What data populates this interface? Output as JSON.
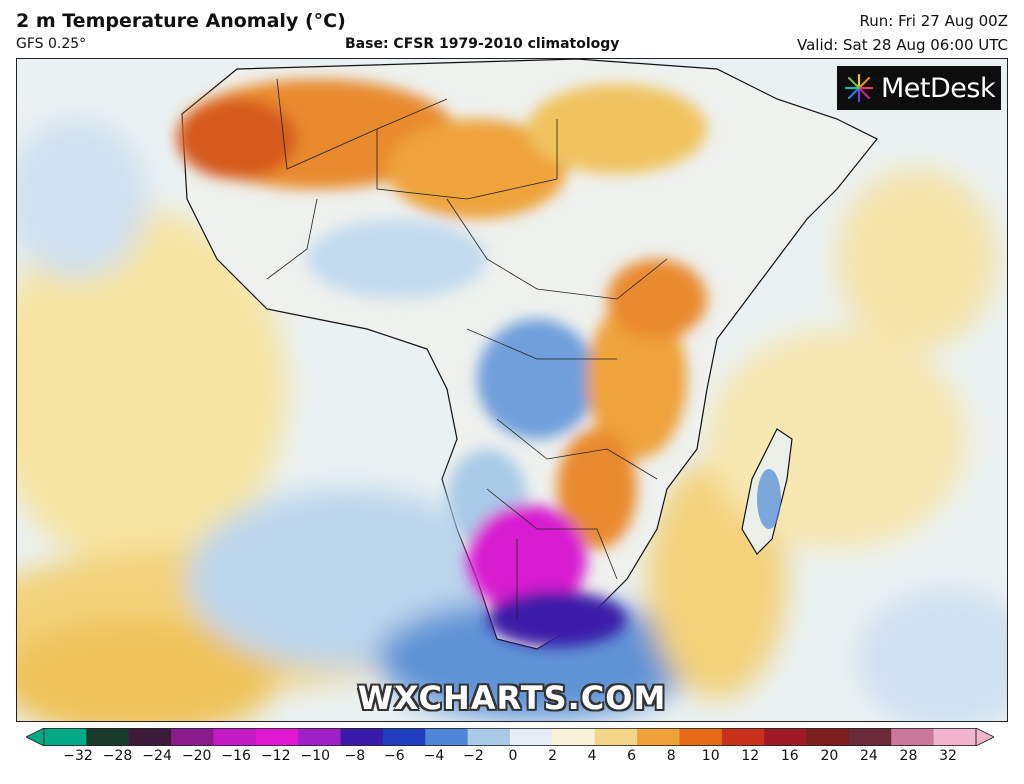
{
  "header": {
    "title": "2 m Temperature Anomaly (°C)",
    "model": "GFS 0.25°",
    "base": "Base: CFSR 1979-2010 climatology",
    "run": "Run: Fri 27 Aug 00Z",
    "valid": "Valid: Sat 28 Aug 06:00 UTC"
  },
  "logo": {
    "text": "MetDesk",
    "icon": "starburst-icon"
  },
  "watermark": "WXCHARTS.COM",
  "colorbar": {
    "ticks": [
      "−32",
      "−28",
      "−24",
      "−20",
      "−16",
      "−12",
      "−10",
      "−8",
      "−6",
      "−4",
      "−2",
      "0",
      "2",
      "4",
      "6",
      "8",
      "10",
      "12",
      "16",
      "20",
      "24",
      "28",
      "32"
    ],
    "colors": [
      "#00a884",
      "#1b3a2e",
      "#3b1a3a",
      "#8b1a8b",
      "#c41ac4",
      "#e019d0",
      "#a020c8",
      "#3a1aa8",
      "#1f3fbf",
      "#4f86d8",
      "#a9cbe8",
      "#e6eef5",
      "#f7f2d8",
      "#f3d68a",
      "#eea33a",
      "#e46a1a",
      "#c9301c",
      "#9e1a24",
      "#7a1e1e",
      "#6b2a3a",
      "#c97a9a",
      "#f1b5cc"
    ]
  },
  "legend": {
    "anomaly_colors": {
      "strong_cold": "#d81ad0",
      "deep_cold": "#3a1aa8",
      "cold": "#3f78c9",
      "cool": "#a9cbe8",
      "neutral": "#eef2ee",
      "mild": "#f6e9b4",
      "warm": "#f0c35e",
      "hot": "#e98a2d",
      "very_hot": "#d65a1c"
    }
  }
}
